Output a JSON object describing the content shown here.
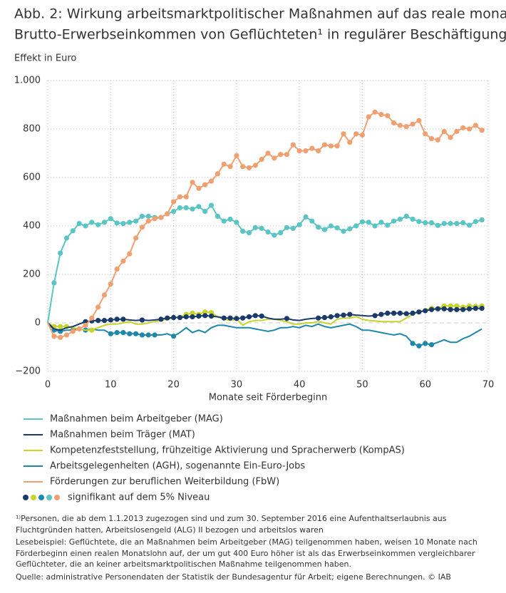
{
  "chart_data": {
    "type": "line",
    "title": [
      "Abb. 2: Wirkung arbeitsmarktpolitischer Maßnahmen auf das reale monatliche",
      "Brutto-Erwerbseinkommen von Geflüchteten¹ in regulärer Beschäftigung"
    ],
    "y_label": "Effekt in Euro",
    "x_label": "Monate seit Förderbeginn",
    "xlim": [
      0,
      70
    ],
    "xticks": [
      0,
      10,
      20,
      30,
      40,
      50,
      60,
      70
    ],
    "ylim": [
      -200,
      1000
    ],
    "yticks": [
      {
        "value": -200,
        "label": "−200"
      },
      0,
      200,
      400,
      600,
      800,
      {
        "value": 1000,
        "label": "1.000"
      }
    ],
    "grid": true,
    "x": [
      0,
      1,
      2,
      3,
      4,
      5,
      6,
      7,
      8,
      9,
      10,
      11,
      12,
      13,
      14,
      15,
      16,
      17,
      18,
      19,
      20,
      21,
      22,
      23,
      24,
      25,
      26,
      27,
      28,
      29,
      30,
      31,
      32,
      33,
      34,
      35,
      36,
      37,
      38,
      39,
      40,
      41,
      42,
      43,
      44,
      45,
      46,
      47,
      48,
      49,
      50,
      51,
      52,
      53,
      54,
      55,
      56,
      57,
      58,
      59,
      60,
      61,
      62,
      63,
      64,
      65,
      66,
      67,
      68,
      69
    ],
    "series": [
      {
        "name": "Maßnahmen beim Arbeitgeber (MAG)",
        "color": "#5bc4c4",
        "values": [
          0,
          165,
          288,
          350,
          380,
          410,
          400,
          415,
          405,
          415,
          430,
          412,
          410,
          415,
          420,
          440,
          440,
          435,
          435,
          450,
          460,
          475,
          475,
          470,
          480,
          460,
          485,
          440,
          420,
          428,
          415,
          378,
          372,
          393,
          390,
          375,
          362,
          372,
          393,
          390,
          405,
          437,
          420,
          395,
          385,
          400,
          392,
          378,
          388,
          400,
          417,
          415,
          400,
          415,
          403,
          420,
          428,
          440,
          428,
          418,
          413,
          413,
          402,
          410,
          410,
          410,
          413,
          403,
          418,
          425
        ],
        "significant": [
          1,
          2,
          3,
          4,
          5,
          6,
          7,
          8,
          9,
          10,
          11,
          12,
          13,
          14,
          15,
          16,
          17,
          18,
          19,
          20,
          21,
          22,
          23,
          24,
          25,
          26,
          27,
          28,
          29,
          30,
          31,
          32,
          33,
          34,
          35,
          36,
          37,
          38,
          39,
          40,
          41,
          42,
          43,
          44,
          45,
          46,
          47,
          48,
          49,
          50,
          51,
          52,
          53,
          54,
          55,
          56,
          57,
          58,
          59,
          60,
          61,
          62,
          63,
          64,
          65,
          66,
          67,
          68,
          69
        ]
      },
      {
        "name": "Maßnahmen beim Träger (MAT)",
        "color": "#1a3a6b",
        "values": [
          0,
          -25,
          -30,
          -20,
          -15,
          -5,
          5,
          8,
          10,
          10,
          12,
          15,
          15,
          12,
          10,
          12,
          10,
          12,
          15,
          20,
          22,
          22,
          25,
          25,
          28,
          30,
          28,
          25,
          20,
          20,
          18,
          20,
          25,
          30,
          28,
          20,
          15,
          15,
          18,
          12,
          10,
          15,
          18,
          20,
          22,
          25,
          30,
          32,
          35,
          32,
          30,
          28,
          30,
          35,
          40,
          40,
          40,
          38,
          40,
          45,
          50,
          55,
          58,
          58,
          55,
          55,
          55,
          58,
          60,
          60
        ],
        "significant": [
          6,
          7,
          8,
          9,
          10,
          11,
          12,
          15,
          18,
          19,
          20,
          21,
          22,
          23,
          24,
          25,
          26,
          28,
          29,
          30,
          31,
          32,
          33,
          34,
          38,
          43,
          44,
          45,
          46,
          47,
          48,
          52,
          53,
          54,
          55,
          56,
          57,
          58,
          59,
          60,
          61,
          62,
          63,
          64,
          65,
          66,
          67,
          68,
          69
        ]
      },
      {
        "name": "Kompetenzfeststellung, frühzeitige Aktivierung und Spracherwerb (KompAS)",
        "color": "#c8d42a",
        "values": [
          0,
          -15,
          -15,
          -15,
          -20,
          -25,
          -30,
          -30,
          -20,
          -10,
          -5,
          -5,
          0,
          5,
          -5,
          -5,
          0,
          5,
          10,
          15,
          20,
          25,
          35,
          40,
          35,
          45,
          42,
          25,
          15,
          10,
          15,
          -10,
          5,
          10,
          10,
          15,
          15,
          10,
          5,
          -5,
          -5,
          0,
          0,
          5,
          0,
          -5,
          15,
          20,
          20,
          25,
          15,
          10,
          8,
          5,
          5,
          5,
          5,
          20,
          35,
          45,
          55,
          60,
          60,
          70,
          70,
          70,
          65,
          70,
          68,
          70
        ],
        "significant": [
          1,
          2,
          3,
          7,
          22,
          23,
          24,
          25,
          26,
          61,
          63,
          64,
          65,
          66,
          67,
          68,
          69
        ]
      },
      {
        "name": "Arbeitsgelegenheiten (AGH), sogenannte Ein-Euro-Jobs",
        "color": "#1e88aa",
        "values": [
          0,
          -30,
          -35,
          -30,
          -30,
          -25,
          -30,
          -25,
          -30,
          -30,
          -45,
          -40,
          -40,
          -45,
          -45,
          -50,
          -50,
          -50,
          -50,
          -45,
          -55,
          -40,
          -20,
          -40,
          -30,
          -40,
          -20,
          -10,
          -10,
          -15,
          -20,
          -20,
          -20,
          -25,
          -30,
          -35,
          -30,
          -20,
          -20,
          -15,
          -20,
          -10,
          -15,
          -5,
          -15,
          -20,
          -15,
          -10,
          -5,
          -15,
          -30,
          -30,
          -35,
          -40,
          -45,
          -50,
          -45,
          -55,
          -85,
          -95,
          -85,
          -90,
          -80,
          -70,
          -80,
          -80,
          -65,
          -55,
          -40,
          -25
        ],
        "significant": [
          1,
          2,
          4,
          5,
          6,
          10,
          11,
          12,
          13,
          14,
          15,
          16,
          17,
          20,
          58,
          59,
          60,
          61
        ]
      },
      {
        "name": "Förderungen zur beruflichen Weiterbildung (FbW)",
        "color": "#f0a070",
        "values": [
          0,
          -55,
          -60,
          -50,
          -35,
          -25,
          -10,
          20,
          65,
          115,
          160,
          222,
          255,
          285,
          350,
          395,
          420,
          430,
          435,
          450,
          500,
          520,
          520,
          580,
          555,
          570,
          585,
          615,
          655,
          645,
          690,
          645,
          640,
          650,
          675,
          700,
          680,
          695,
          695,
          735,
          710,
          710,
          720,
          710,
          735,
          730,
          730,
          780,
          745,
          780,
          775,
          850,
          870,
          860,
          855,
          825,
          815,
          810,
          820,
          835,
          780,
          760,
          755,
          790,
          765,
          790,
          805,
          800,
          815,
          795
        ],
        "significant": [
          1,
          2,
          3,
          4,
          5,
          6,
          7,
          8,
          9,
          10,
          11,
          12,
          13,
          14,
          15,
          16,
          17,
          18,
          19,
          20,
          21,
          22,
          23,
          24,
          25,
          26,
          27,
          28,
          29,
          30,
          31,
          32,
          33,
          34,
          35,
          36,
          37,
          38,
          39,
          40,
          41,
          42,
          43,
          44,
          45,
          46,
          47,
          48,
          49,
          50,
          51,
          52,
          53,
          54,
          55,
          56,
          57,
          58,
          59,
          60,
          61,
          62,
          63,
          64,
          65,
          66,
          67,
          68,
          69
        ]
      }
    ],
    "significance_label": "signifikant auf dem 5% Niveau",
    "significance_legend_order": [
      1,
      2,
      3,
      0,
      4
    ],
    "notes": [
      "¹⁾Personen, die ab dem 1.1.2013 zugezogen sind und zum 30. September 2016 eine Aufenthaltserlaubnis aus Fluchtgründen hatten, Arbeitslosengeld (ALG) II bezogen und arbeitslos waren",
      "Lesebeispiel: Geflüchtete, die an Maßnahmen beim Arbeitgeber (MAG) teilgenommen haben, weisen 10 Monate nach Förderbeginn einen realen Monatslohn auf, der um gut 400 Euro höher ist als das Erwerbseinkommen vergleichbarer Geflüchteter, die an keiner arbeitsmarktpolitischen Maßnahme teilgenommen haben.",
      "Quelle: administrative Personendaten der Statistik der Bundesagentur für Arbeit; eigene Berechnungen. © IAB"
    ]
  }
}
